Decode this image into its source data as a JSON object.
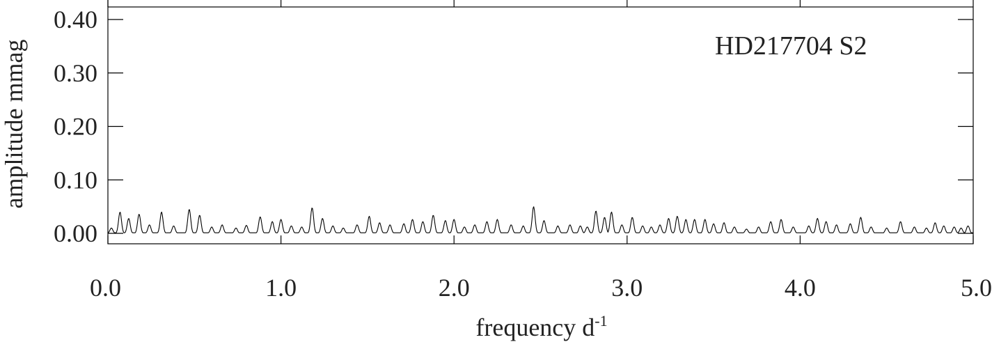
{
  "chart_data": {
    "type": "line",
    "annotation": "HD217704 S2",
    "xlabel": "frequency d",
    "xlabel_superscript": "-1",
    "ylabel": "amplitude mmag",
    "xlim": [
      0.0,
      5.0
    ],
    "ylim": [
      0.0,
      0.4
    ],
    "x_ticks": [
      {
        "value": 0.0,
        "label": "0.0"
      },
      {
        "value": 1.0,
        "label": "1.0"
      },
      {
        "value": 2.0,
        "label": "2.0"
      },
      {
        "value": 3.0,
        "label": "3.0"
      },
      {
        "value": 4.0,
        "label": "4.0"
      },
      {
        "value": 5.0,
        "label": "5.0"
      }
    ],
    "y_ticks": [
      {
        "value": 0.0,
        "label": "0.00"
      },
      {
        "value": 0.1,
        "label": "0.10"
      },
      {
        "value": 0.2,
        "label": "0.20"
      },
      {
        "value": 0.3,
        "label": "0.30"
      },
      {
        "value": 0.4,
        "label": "0.40"
      }
    ],
    "grid": false,
    "line_color": "#000000",
    "series": [
      {
        "peaks": [
          [
            0.02,
            0.01
          ],
          [
            0.07,
            0.04
          ],
          [
            0.12,
            0.028
          ],
          [
            0.18,
            0.036
          ],
          [
            0.24,
            0.016
          ],
          [
            0.31,
            0.04
          ],
          [
            0.38,
            0.014
          ],
          [
            0.47,
            0.045
          ],
          [
            0.53,
            0.034
          ],
          [
            0.6,
            0.012
          ],
          [
            0.66,
            0.016
          ],
          [
            0.74,
            0.01
          ],
          [
            0.8,
            0.015
          ],
          [
            0.88,
            0.031
          ],
          [
            0.95,
            0.022
          ],
          [
            1.0,
            0.026
          ],
          [
            1.06,
            0.014
          ],
          [
            1.12,
            0.012
          ],
          [
            1.18,
            0.048
          ],
          [
            1.24,
            0.028
          ],
          [
            1.3,
            0.014
          ],
          [
            1.36,
            0.01
          ],
          [
            1.44,
            0.016
          ],
          [
            1.51,
            0.032
          ],
          [
            1.57,
            0.02
          ],
          [
            1.63,
            0.016
          ],
          [
            1.71,
            0.018
          ],
          [
            1.76,
            0.026
          ],
          [
            1.82,
            0.022
          ],
          [
            1.88,
            0.034
          ],
          [
            1.95,
            0.024
          ],
          [
            2.0,
            0.026
          ],
          [
            2.06,
            0.012
          ],
          [
            2.12,
            0.016
          ],
          [
            2.19,
            0.022
          ],
          [
            2.25,
            0.026
          ],
          [
            2.33,
            0.016
          ],
          [
            2.4,
            0.014
          ],
          [
            2.46,
            0.05
          ],
          [
            2.52,
            0.024
          ],
          [
            2.6,
            0.014
          ],
          [
            2.67,
            0.016
          ],
          [
            2.73,
            0.014
          ],
          [
            2.77,
            0.012
          ],
          [
            2.82,
            0.042
          ],
          [
            2.87,
            0.03
          ],
          [
            2.91,
            0.04
          ],
          [
            2.97,
            0.016
          ],
          [
            3.03,
            0.03
          ],
          [
            3.09,
            0.014
          ],
          [
            3.14,
            0.012
          ],
          [
            3.19,
            0.016
          ],
          [
            3.24,
            0.028
          ],
          [
            3.29,
            0.032
          ],
          [
            3.34,
            0.026
          ],
          [
            3.39,
            0.026
          ],
          [
            3.45,
            0.026
          ],
          [
            3.5,
            0.018
          ],
          [
            3.56,
            0.02
          ],
          [
            3.62,
            0.012
          ],
          [
            3.69,
            0.008
          ],
          [
            3.76,
            0.012
          ],
          [
            3.83,
            0.022
          ],
          [
            3.89,
            0.026
          ],
          [
            3.96,
            0.012
          ],
          [
            4.05,
            0.014
          ],
          [
            4.1,
            0.028
          ],
          [
            4.15,
            0.022
          ],
          [
            4.21,
            0.016
          ],
          [
            4.29,
            0.018
          ],
          [
            4.35,
            0.03
          ],
          [
            4.41,
            0.012
          ],
          [
            4.5,
            0.01
          ],
          [
            4.58,
            0.022
          ],
          [
            4.66,
            0.012
          ],
          [
            4.73,
            0.01
          ],
          [
            4.78,
            0.02
          ],
          [
            4.83,
            0.014
          ],
          [
            4.89,
            0.012
          ],
          [
            4.93,
            0.01
          ],
          [
            4.97,
            0.014
          ]
        ]
      }
    ]
  }
}
